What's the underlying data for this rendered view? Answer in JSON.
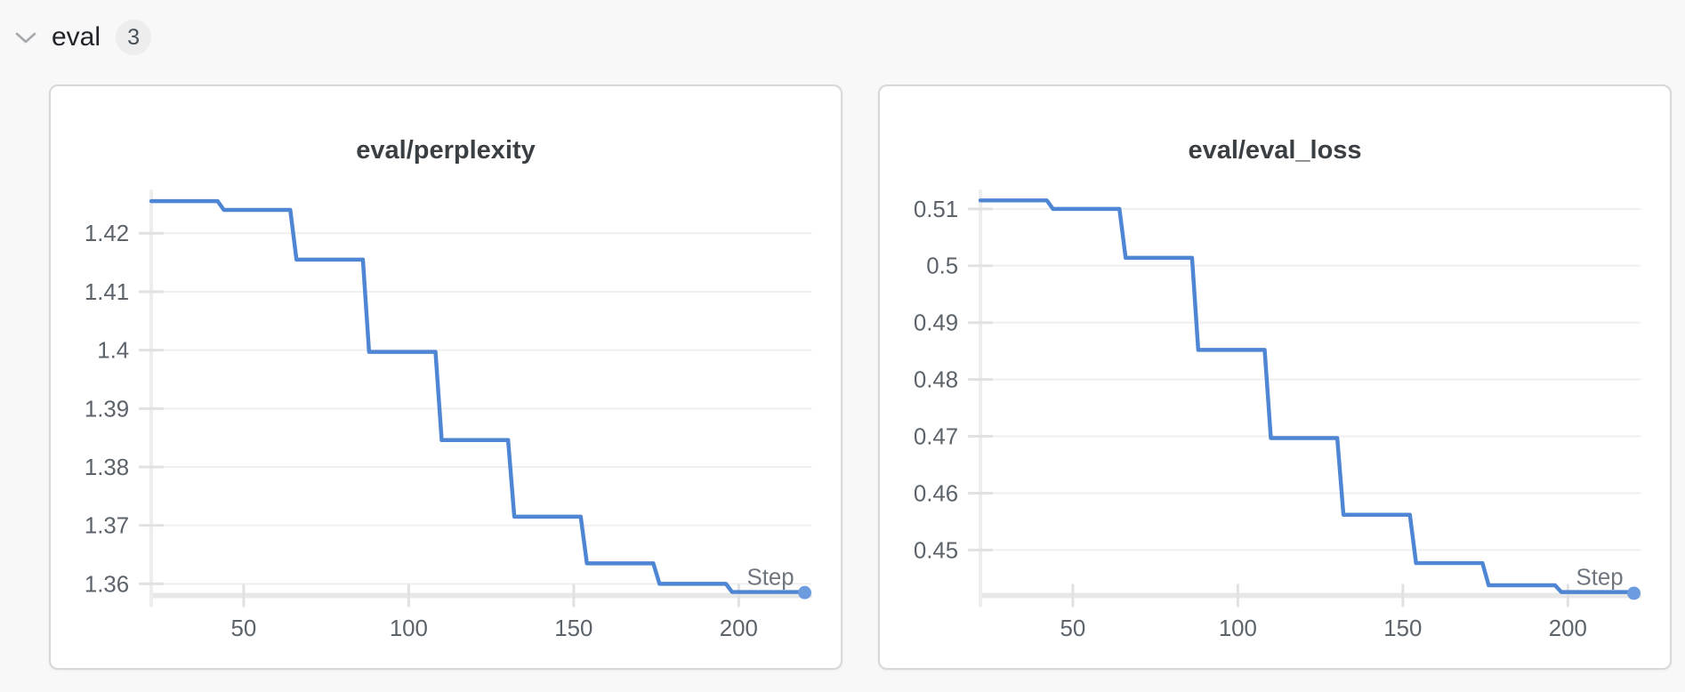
{
  "header": {
    "section_label": "eval",
    "count_badge": "3"
  },
  "chart_data": [
    {
      "type": "line",
      "line_style": "step-after",
      "title": "eval/perplexity",
      "xlabel": "Step",
      "x": [
        22,
        44,
        66,
        88,
        110,
        132,
        154,
        176,
        198,
        220
      ],
      "y": [
        1.4255,
        1.424,
        1.4155,
        1.3997,
        1.3846,
        1.3715,
        1.3635,
        1.36,
        1.3586,
        1.3585
      ],
      "x_ticks": [
        50,
        100,
        150,
        200
      ],
      "y_ticks": [
        {
          "value": 1.36,
          "label": "1.36"
        },
        {
          "value": 1.37,
          "label": "1.37"
        },
        {
          "value": 1.38,
          "label": "1.38"
        },
        {
          "value": 1.39,
          "label": "1.39"
        },
        {
          "value": 1.4,
          "label": "1.4"
        },
        {
          "value": 1.41,
          "label": "1.41"
        },
        {
          "value": 1.42,
          "label": "1.42"
        }
      ],
      "xlim": [
        22,
        220
      ],
      "ylim": [
        1.358,
        1.42746
      ],
      "grid": "horizontal",
      "legend": "none",
      "end_marker": true
    },
    {
      "type": "line",
      "line_style": "step-after",
      "title": "eval/eval_loss",
      "xlabel": "Step",
      "x": [
        22,
        44,
        66,
        88,
        110,
        132,
        154,
        176,
        198,
        220
      ],
      "y": [
        0.5115,
        0.51,
        0.5014,
        0.4852,
        0.4697,
        0.4562,
        0.4477,
        0.4438,
        0.4426,
        0.4424
      ],
      "x_ticks": [
        50,
        100,
        150,
        200
      ],
      "y_ticks": [
        {
          "value": 0.45,
          "label": "0.45"
        },
        {
          "value": 0.46,
          "label": "0.46"
        },
        {
          "value": 0.47,
          "label": "0.47"
        },
        {
          "value": 0.48,
          "label": "0.48"
        },
        {
          "value": 0.49,
          "label": "0.49"
        },
        {
          "value": 0.5,
          "label": "0.5"
        },
        {
          "value": 0.51,
          "label": "0.51"
        }
      ],
      "xlim": [
        22,
        220
      ],
      "ylim": [
        0.442,
        0.51338
      ],
      "grid": "horizontal",
      "legend": "none",
      "end_marker": true
    }
  ],
  "style": {
    "accent_line": "#4f86d3",
    "end_dot": "#6d9be0",
    "grid_color": "#efefef",
    "axis_color": "#ededed",
    "tick_color": "#e1e1e4",
    "baseline_color": "#e8e8e8",
    "label_color": "#5c636b",
    "xlabel_color": "#70767e",
    "title_color": "#3a3f44",
    "page_bg": "#f8f8f9",
    "card_bg": "#ffffff",
    "card_border": "#d8d8d8",
    "badge_bg": "#ededee",
    "badge_text": "#495057",
    "header_text": "#212529",
    "chevron_color": "#a5a8ad"
  }
}
